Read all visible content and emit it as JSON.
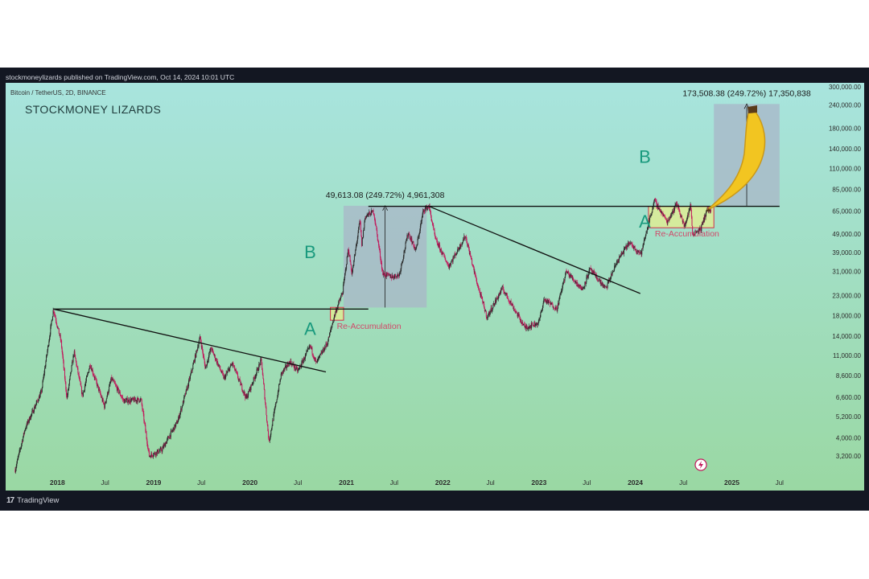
{
  "header": {
    "published": "stockmoneylizards published on TradingView.com, Oct 14, 2024 10:01 UTC"
  },
  "footer": {
    "brand": "TradingView",
    "brand_mark": "17"
  },
  "colors": {
    "bg_top": "#a8e4de",
    "bg_bottom": "#9ad8a3",
    "candle_up": "#2a2a2a",
    "candle_down": "#c2185b",
    "label_green": "#1a9a7e",
    "reacc_text": "#d14a6a",
    "reacc_fill": "#e9f08a",
    "reacc_border": "#d1304c",
    "measure_fill": "#a9b4c8",
    "banana": "#f2c521"
  },
  "chart_data": {
    "type": "candlestick",
    "symbol_line": "Bitcoin / TetherUS, 2D, BINANCE",
    "watermark": "STOCKMONEY LIZARDS",
    "y_scale": "log",
    "y_tick_labels": [
      "300,000.00",
      "240,000.00",
      "180,000.00",
      "140,000.00",
      "110,000.00",
      "85,000.00",
      "65,000.00",
      "49,000.00",
      "39,000.00",
      "31,000.00",
      "23,000.00",
      "18,000.00",
      "14,000.00",
      "11,000.00",
      "8,600.00",
      "6,600.00",
      "5,200.00",
      "4,000.00",
      "3,200.00"
    ],
    "x_tick_labels": [
      "2018",
      "Jul",
      "2019",
      "Jul",
      "2020",
      "Jul",
      "2021",
      "Jul",
      "2022",
      "Jul",
      "2023",
      "Jul",
      "2024",
      "Jul",
      "2025",
      "Jul"
    ],
    "x_range": [
      "2017-07",
      "2025-10"
    ],
    "price_path": [
      [
        "2017-07-25",
        2700
      ],
      [
        "2017-09-01",
        4500
      ],
      [
        "2017-11-01",
        7000
      ],
      [
        "2017-12-17",
        19500
      ],
      [
        "2018-01-15",
        13000
      ],
      [
        "2018-02-06",
        6500
      ],
      [
        "2018-03-05",
        11500
      ],
      [
        "2018-04-06",
        6700
      ],
      [
        "2018-05-05",
        9900
      ],
      [
        "2018-06-28",
        5900
      ],
      [
        "2018-07-25",
        8300
      ],
      [
        "2018-09-10",
        6300
      ],
      [
        "2018-11-14",
        6400
      ],
      [
        "2018-12-15",
        3200
      ],
      [
        "2019-02-01",
        3450
      ],
      [
        "2019-04-02",
        4900
      ],
      [
        "2019-05-15",
        8000
      ],
      [
        "2019-06-26",
        13800
      ],
      [
        "2019-07-16",
        9400
      ],
      [
        "2019-08-06",
        12100
      ],
      [
        "2019-09-25",
        8300
      ],
      [
        "2019-10-26",
        10000
      ],
      [
        "2019-12-18",
        6500
      ],
      [
        "2020-02-13",
        10400
      ],
      [
        "2020-03-13",
        3800
      ],
      [
        "2020-04-29",
        8800
      ],
      [
        "2020-06-01",
        10200
      ],
      [
        "2020-07-01",
        9100
      ],
      [
        "2020-08-17",
        12400
      ],
      [
        "2020-09-08",
        10000
      ],
      [
        "2020-10-21",
        12900
      ],
      [
        "2020-11-20",
        18800
      ],
      [
        "2020-12-17",
        23800
      ],
      [
        "2021-01-08",
        41000
      ],
      [
        "2021-01-22",
        30000
      ],
      [
        "2021-02-21",
        58000
      ],
      [
        "2021-02-28",
        43000
      ],
      [
        "2021-03-13",
        61000
      ],
      [
        "2021-04-14",
        64800
      ],
      [
        "2021-05-19",
        30000
      ],
      [
        "2021-06-22",
        29000
      ],
      [
        "2021-07-20",
        29700
      ],
      [
        "2021-08-23",
        50000
      ],
      [
        "2021-09-21",
        40000
      ],
      [
        "2021-10-20",
        66000
      ],
      [
        "2021-11-10",
        69000
      ],
      [
        "2021-12-04",
        46000
      ],
      [
        "2022-01-24",
        33000
      ],
      [
        "2022-03-28",
        48000
      ],
      [
        "2022-05-12",
        26500
      ],
      [
        "2022-06-18",
        17600
      ],
      [
        "2022-08-15",
        25200
      ],
      [
        "2022-11-09",
        15500
      ],
      [
        "2022-12-31",
        16500
      ],
      [
        "2023-01-20",
        22000
      ],
      [
        "2023-03-10",
        19600
      ],
      [
        "2023-04-14",
        31000
      ],
      [
        "2023-06-15",
        24800
      ],
      [
        "2023-07-13",
        31800
      ],
      [
        "2023-09-11",
        25000
      ],
      [
        "2023-10-24",
        35000
      ],
      [
        "2023-12-08",
        44000
      ],
      [
        "2024-01-23",
        38500
      ],
      [
        "2024-02-28",
        62000
      ],
      [
        "2024-03-14",
        73800
      ],
      [
        "2024-05-01",
        57000
      ],
      [
        "2024-06-07",
        71900
      ],
      [
        "2024-07-05",
        53500
      ],
      [
        "2024-07-29",
        70000
      ],
      [
        "2024-08-05",
        49000
      ],
      [
        "2024-09-06",
        52500
      ],
      [
        "2024-09-28",
        66000
      ],
      [
        "2024-10-14",
        65500
      ]
    ],
    "trendlines": [
      {
        "name": "descending-trendline-1",
        "from": [
          "2017-12-17",
          19500
        ],
        "to": [
          "2020-10-15",
          9000
        ]
      },
      {
        "name": "horizontal-2017-high",
        "from": [
          "2017-12-17",
          19500
        ],
        "to": [
          "2021-03-25",
          19500
        ]
      },
      {
        "name": "descending-trendline-2",
        "from": [
          "2021-11-10",
          69000
        ],
        "to": [
          "2024-01-20",
          23600
        ]
      },
      {
        "name": "horizontal-2021-high",
        "from": [
          "2021-03-25",
          69000
        ],
        "to": [
          "2025-07-01",
          69000
        ]
      }
    ],
    "re_accumulation_zones": [
      {
        "label": "Re-Accumulation",
        "from": "2020-11-01",
        "to": "2020-12-21",
        "low": 17000,
        "high": 19900
      },
      {
        "label": "Re-Accumulation",
        "from": "2024-02-20",
        "to": "2024-10-25",
        "low": 53000,
        "high": 69000
      }
    ],
    "measured_moves": [
      {
        "label": "49,613.08 (249.72%) 4,961,308",
        "from": "2020-12-21",
        "to": "2021-11-01",
        "low": 19868,
        "high": 69481
      },
      {
        "label": "173,508.38 (249.72%) 17,350,838",
        "from": "2024-10-25",
        "to": "2025-07-01",
        "low": 69481,
        "high": 242990
      }
    ],
    "wave_labels": [
      {
        "text": "A",
        "date": "2020-07-25",
        "price": 14200
      },
      {
        "text": "B",
        "date": "2020-07-25",
        "price": 36500
      },
      {
        "text": "A",
        "date": "2024-01-15",
        "price": 53000
      },
      {
        "text": "B",
        "date": "2024-01-15",
        "price": 118000
      }
    ]
  }
}
